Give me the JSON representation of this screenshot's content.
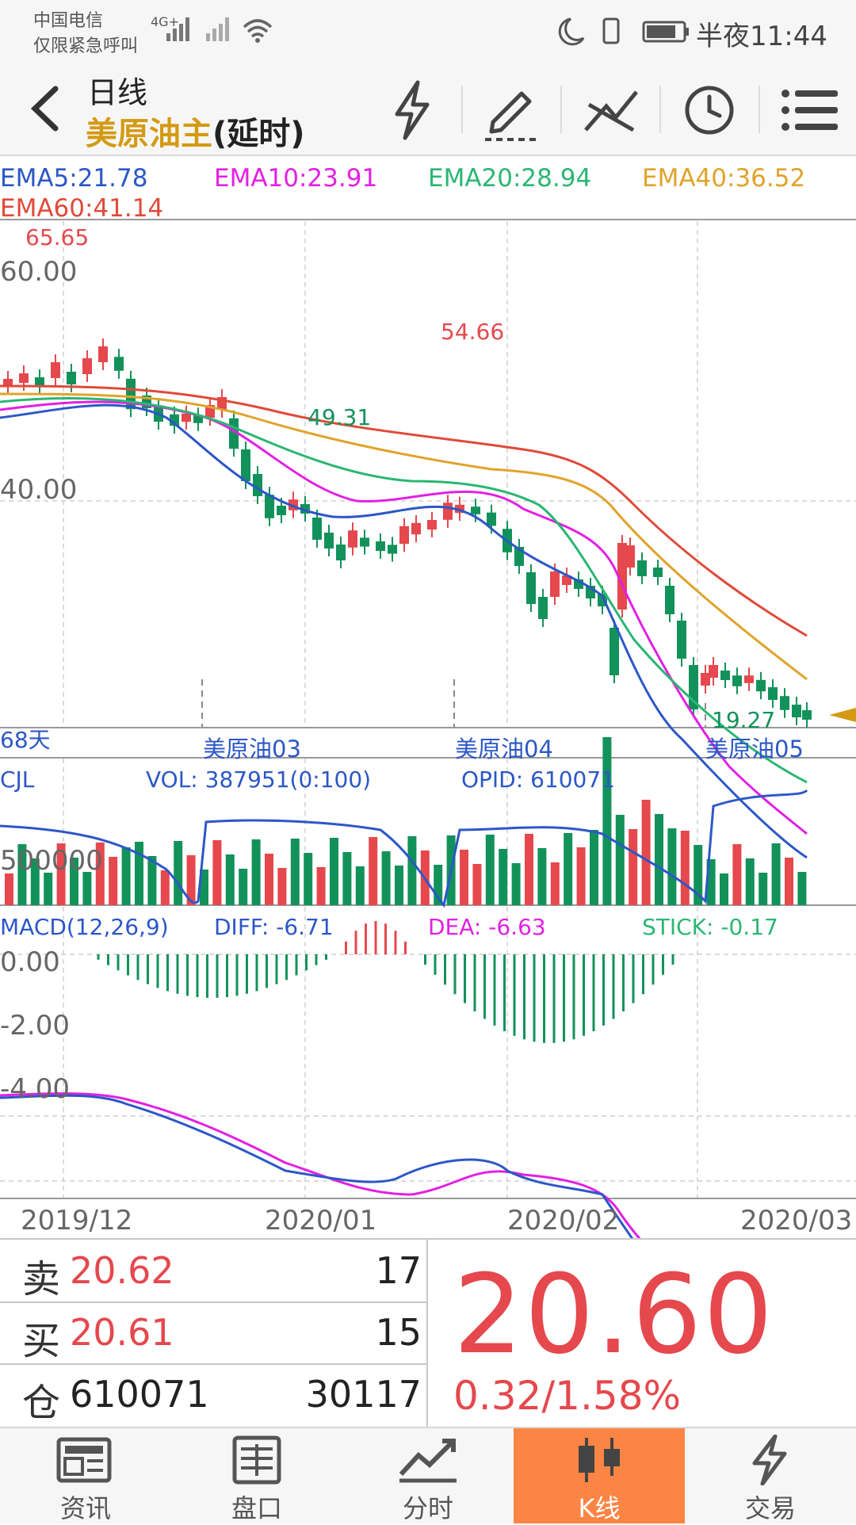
{
  "status_bar": {
    "carrier": "中国电信",
    "carrier_note": "仅限紧急呼叫",
    "network": "4G+",
    "time": "半夜11:44"
  },
  "header": {
    "period": "日线",
    "contract_name": "美原油主",
    "contract_suffix": "(延时)",
    "toolbar": [
      "lightning-icon",
      "pencil-icon",
      "line-tool-icon",
      "clock-icon",
      "menu-icon"
    ]
  },
  "ema_legend": [
    {
      "label": "EMA5:21.78",
      "color": "#2c57c7"
    },
    {
      "label": "EMA10:23.91",
      "color": "#e320e3"
    },
    {
      "label": "EMA20:28.94",
      "color": "#2bb673"
    },
    {
      "label": "EMA40:36.52",
      "color": "#e0a32a"
    },
    {
      "label": "EMA60:41.14",
      "color": "#e04a3a"
    }
  ],
  "price_chart": {
    "y_labels": [
      "60.00",
      "40.00"
    ],
    "high_label": "65.65",
    "mid_high_label": "54.66",
    "low_label": "49.31",
    "last_low_label": "19.27",
    "days_label": "68天",
    "contract_markers": [
      "美原油03",
      "美原油04",
      "美原油05"
    ]
  },
  "volume_panel": {
    "title": "CJL",
    "vol": "VOL: 387951(0:100)",
    "opid": "OPID: 610071",
    "y_label": "500000"
  },
  "macd_panel": {
    "title": "MACD(12,26,9)",
    "diff": "DIFF: -6.71",
    "dea": "DEA: -6.63",
    "stick": "STICK: -0.17",
    "y_labels": [
      "0.00",
      "-2.00",
      "-4.00"
    ]
  },
  "x_axis": [
    "2019/12",
    "2020/01",
    "2020/02",
    "2020/03"
  ],
  "quote": {
    "sell_cap": "卖",
    "sell_price": "20.62",
    "sell_vol": "17",
    "buy_cap": "买",
    "buy_price": "20.61",
    "buy_vol": "15",
    "oi_cap": "仓",
    "oi": "610071",
    "oi_chg": "30117",
    "last": "20.60",
    "change": "0.32/1.58%"
  },
  "bottom_nav": [
    {
      "label": "资讯",
      "icon": "news-icon",
      "active": false
    },
    {
      "label": "盘口",
      "icon": "orderbook-icon",
      "active": false
    },
    {
      "label": "分时",
      "icon": "intraday-icon",
      "active": false
    },
    {
      "label": "K线",
      "icon": "candlestick-icon",
      "active": true
    },
    {
      "label": "交易",
      "icon": "trade-lightning-icon",
      "active": false
    }
  ],
  "colors": {
    "up": "#e5484d",
    "down": "#12925a",
    "gold": "#d49a14",
    "accent": "#fb8545"
  }
}
